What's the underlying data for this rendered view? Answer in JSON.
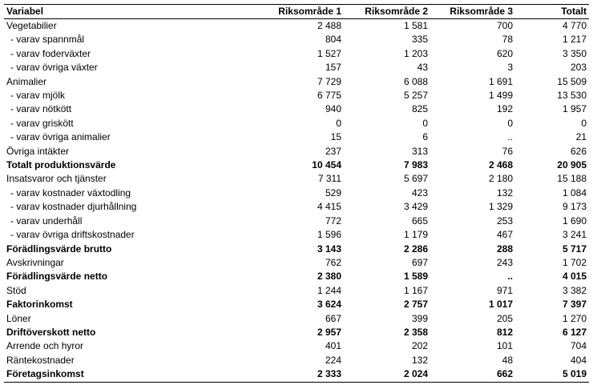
{
  "table": {
    "header": [
      "Variabel",
      "Riksområde 1",
      "Riksområde 2",
      "Riksområde 3",
      "Totalt"
    ],
    "rows": [
      [
        "Vegetabilier",
        "2 488",
        "1 581",
        "700",
        "4 770"
      ],
      [
        "- varav spannmål",
        "804",
        "335",
        "78",
        "1 217"
      ],
      [
        "- varav foderväxter",
        "1 527",
        "1 203",
        "620",
        "3 350"
      ],
      [
        "- varav övriga växter",
        "157",
        "43",
        "3",
        "203"
      ],
      [
        "Animalier",
        "7 729",
        "6 088",
        "1 691",
        "15 509"
      ],
      [
        "- varav mjölk",
        "6 775",
        "5 257",
        "1 499",
        "13 530"
      ],
      [
        "- varav nötkött",
        "940",
        "825",
        "192",
        "1 957"
      ],
      [
        "- varav griskött",
        "0",
        "0",
        "0",
        "0"
      ],
      [
        "- varav övriga animalier",
        "15",
        "6",
        "..",
        "21"
      ],
      [
        "Övriga intäkter",
        "237",
        "313",
        "76",
        "626"
      ],
      [
        "Totalt produktionsvärde",
        "10 454",
        "7 983",
        "2 468",
        "20 905"
      ],
      [
        "Insatsvaror och tjänster",
        "7 311",
        "5 697",
        "2 180",
        "15 188"
      ],
      [
        "- varav kostnader växtodling",
        "529",
        "423",
        "132",
        "1 084"
      ],
      [
        "- varav kostnader djurhållning",
        "4 415",
        "3 429",
        "1 329",
        "9 173"
      ],
      [
        "- varav underhåll",
        "772",
        "665",
        "253",
        "1 690"
      ],
      [
        "- varav övriga driftskostnader",
        "1 596",
        "1 179",
        "467",
        "3 241"
      ],
      [
        "Förädlingsvärde brutto",
        "3 143",
        "2 286",
        "288",
        "5 717"
      ],
      [
        "Avskrivningar",
        "762",
        "697",
        "243",
        "1 702"
      ],
      [
        "Förädlingsvärde netto",
        "2 380",
        "1 589",
        "..",
        "4 015"
      ],
      [
        "Stöd",
        "1 244",
        "1 167",
        "971",
        "3 382"
      ],
      [
        "Faktorinkomst",
        "3 624",
        "2 757",
        "1 017",
        "7 397"
      ],
      [
        "Löner",
        "667",
        "399",
        "205",
        "1 270"
      ],
      [
        "Driftöverskott netto",
        "2 957",
        "2 358",
        "812",
        "6 127"
      ],
      [
        "Arrende och hyror",
        "401",
        "202",
        "101",
        "704"
      ],
      [
        "Räntekostnader",
        "224",
        "132",
        "48",
        "404"
      ],
      [
        "Företagsinkomst",
        "2 333",
        "2 024",
        "662",
        "5 019"
      ]
    ]
  }
}
